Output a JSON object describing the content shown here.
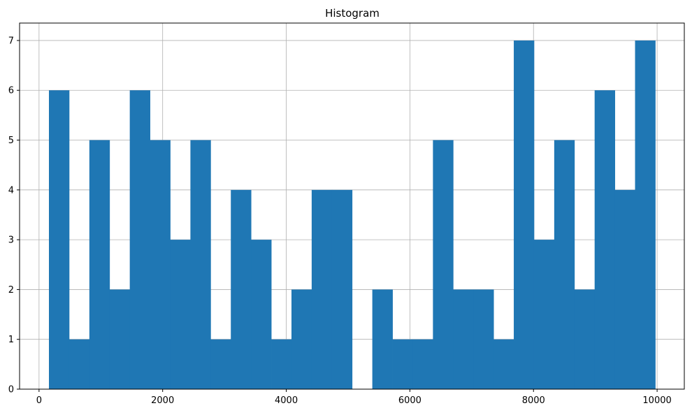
{
  "chart_data": {
    "type": "bar",
    "title": "Histogram",
    "xlabel": "",
    "ylabel": "",
    "bin_start": 160,
    "bin_width": 327,
    "counts": [
      6,
      1,
      5,
      2,
      6,
      5,
      3,
      5,
      1,
      4,
      3,
      1,
      2,
      4,
      4,
      0,
      2,
      1,
      1,
      5,
      2,
      2,
      1,
      7,
      3,
      5,
      2,
      6,
      4,
      7
    ],
    "xlim": [
      -315,
      10440
    ],
    "ylim": [
      0,
      7.35
    ],
    "xticks": [
      0,
      2000,
      4000,
      6000,
      8000,
      10000
    ],
    "xtick_labels": [
      "0",
      "2000",
      "4000",
      "6000",
      "8000",
      "10000"
    ],
    "yticks": [
      0,
      1,
      2,
      3,
      4,
      5,
      6,
      7
    ],
    "ytick_labels": [
      "0",
      "1",
      "2",
      "3",
      "4",
      "5",
      "6",
      "7"
    ],
    "grid": true,
    "bar_color": "#1f77b4",
    "grid_color": "#b0b0b0"
  }
}
